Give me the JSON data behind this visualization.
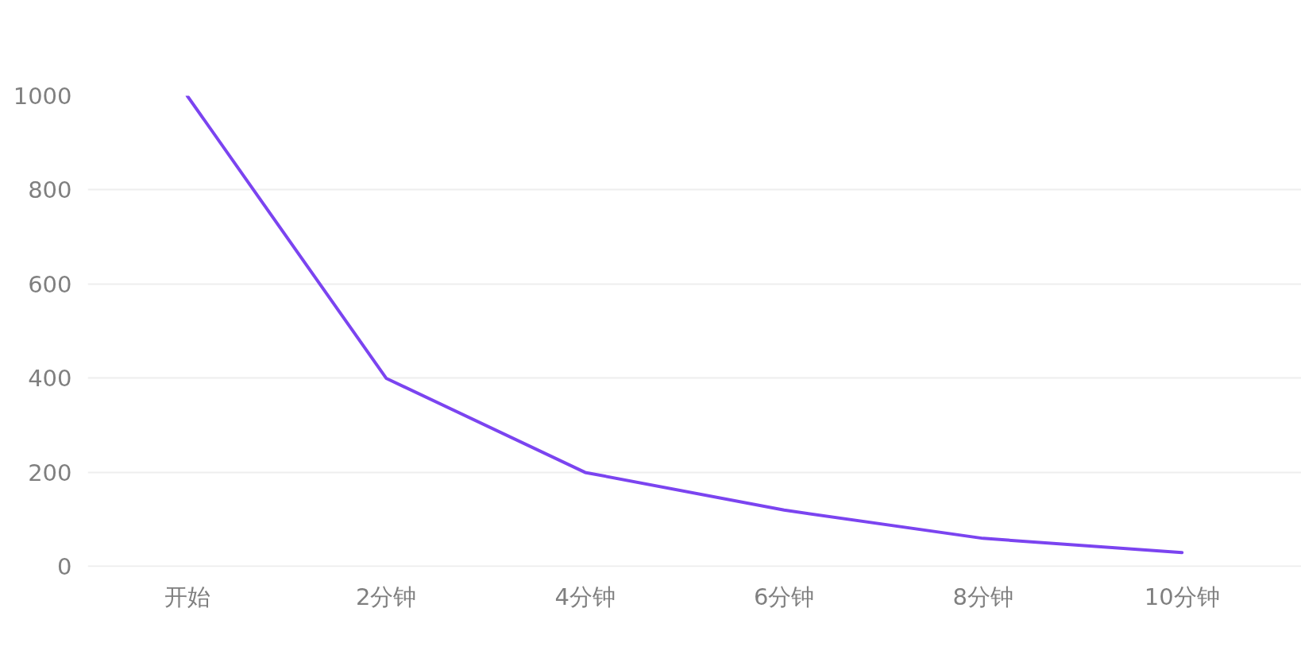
{
  "chart_data": {
    "type": "line",
    "categories": [
      "开始",
      "2分钟",
      "4分钟",
      "6分钟",
      "8分钟",
      "10分钟"
    ],
    "series": [
      {
        "color": "#7b44f0",
        "values": [
          1000,
          400,
          200,
          120,
          60,
          30
        ]
      }
    ],
    "ylim": [
      0,
      1000
    ],
    "yticks": [
      0,
      200,
      400,
      600,
      800,
      1000
    ],
    "grid": "y",
    "marker": "none",
    "line_style": "solid"
  }
}
